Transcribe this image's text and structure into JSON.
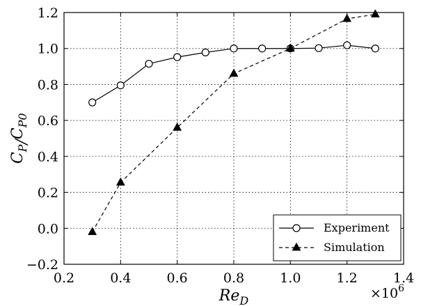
{
  "chart_data": {
    "type": "line",
    "xlabel": "Re_D",
    "ylabel": "C_P/C_P0",
    "x_multiplier": "×10^6",
    "xlim": [
      0.2,
      1.4
    ],
    "ylim": [
      -0.2,
      1.2
    ],
    "x_ticks": [
      0.2,
      0.4,
      0.6,
      0.8,
      1.0,
      1.2,
      1.4
    ],
    "y_ticks": [
      -0.2,
      0.0,
      0.2,
      0.4,
      0.6,
      0.8,
      1.0,
      1.2
    ],
    "x_tick_labels": [
      "0.2",
      "0.4",
      "0.6",
      "0.8",
      "1.0",
      "1.2",
      "1.4"
    ],
    "y_tick_labels": [
      "−0.2",
      "0.0",
      "0.2",
      "0.4",
      "0.6",
      "0.8",
      "1.0",
      "1.2"
    ],
    "grid": true,
    "legend": "bottom-right",
    "series": [
      {
        "name": "Experiment",
        "line": "solid",
        "marker": "open-circle",
        "color": "#000000",
        "x": [
          0.3,
          0.4,
          0.5,
          0.6,
          0.7,
          0.8,
          0.9,
          1.0,
          1.1,
          1.2,
          1.3
        ],
        "y": [
          0.7,
          0.795,
          0.915,
          0.952,
          0.978,
          1.0,
          1.0,
          1.0,
          1.002,
          1.018,
          1.0
        ]
      },
      {
        "name": "Simulation",
        "line": "dashed",
        "marker": "filled-triangle",
        "color": "#000000",
        "x": [
          0.3,
          0.4,
          0.6,
          0.8,
          1.0,
          1.2,
          1.3
        ],
        "y": [
          -0.02,
          0.255,
          0.56,
          0.86,
          1.0,
          1.165,
          1.19
        ]
      }
    ]
  }
}
